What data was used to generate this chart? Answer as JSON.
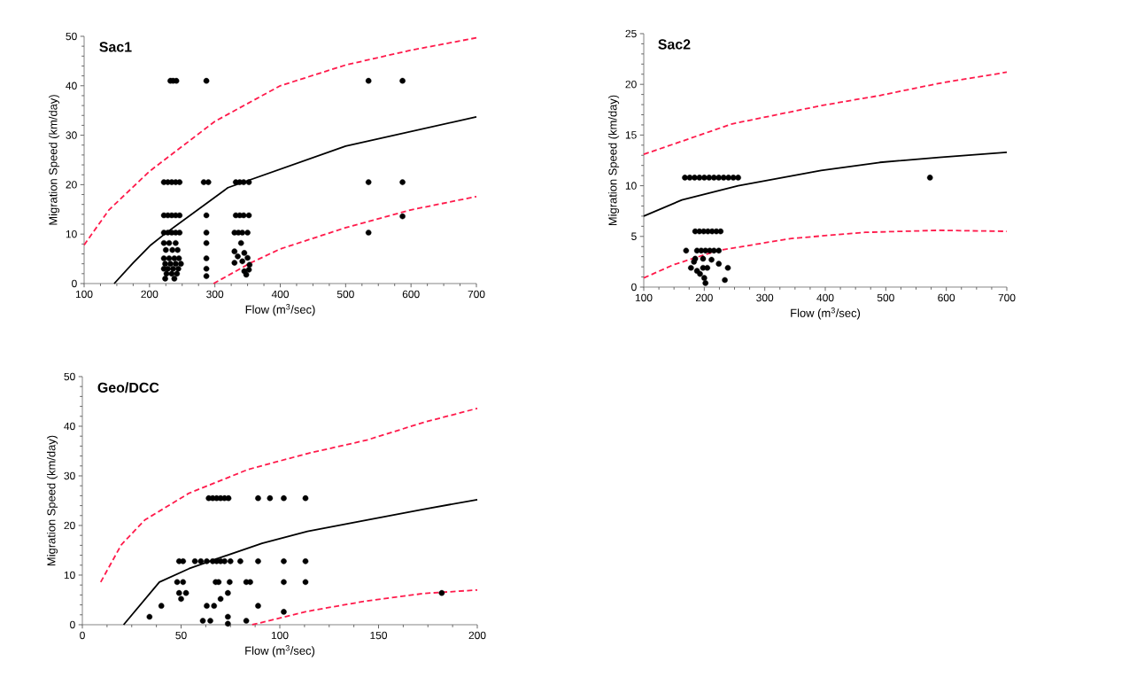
{
  "chart_data": [
    {
      "type": "scatter",
      "title": "Sac1",
      "xlabel": "Flow (m$^{3}$/sec)",
      "ylabel": "Migration Speed (km/day)",
      "xlim": [
        100,
        700
      ],
      "ylim": [
        0,
        50
      ],
      "xticks": [
        100,
        200,
        300,
        400,
        500,
        600,
        700
      ],
      "yticks": [
        0,
        10,
        20,
        30,
        40,
        50
      ],
      "series": [
        {
          "marker": "circle",
          "color": "#000000",
          "x": [
            232,
            236,
            241,
            287,
            535,
            587,
            222,
            228,
            234,
            240,
            246,
            283,
            290,
            332,
            338,
            344,
            352,
            535,
            587,
            222,
            228,
            234,
            240,
            246,
            287,
            332,
            338,
            344,
            352,
            587,
            222,
            228,
            234,
            240,
            246,
            287,
            330,
            336,
            342,
            350,
            535,
            222,
            230,
            240,
            287,
            340,
            225,
            235,
            243,
            330,
            345,
            222,
            230,
            238,
            245,
            287,
            335,
            350,
            224,
            232,
            240,
            248,
            330,
            342,
            353,
            222,
            228,
            236,
            244,
            287,
            345,
            352,
            226,
            234,
            242,
            287,
            348,
            224,
            238
          ],
          "values": [
            41,
            41,
            41,
            41,
            41,
            41,
            20.5,
            20.5,
            20.5,
            20.5,
            20.5,
            20.5,
            20.5,
            20.5,
            20.5,
            20.5,
            20.5,
            20.5,
            20.5,
            13.8,
            13.8,
            13.8,
            13.8,
            13.8,
            13.8,
            13.8,
            13.8,
            13.8,
            13.8,
            13.6,
            10.3,
            10.3,
            10.3,
            10.3,
            10.3,
            10.3,
            10.3,
            10.3,
            10.3,
            10.3,
            10.3,
            8.2,
            8.2,
            8.2,
            8.2,
            8.2,
            6.8,
            6.8,
            6.8,
            6.5,
            6.2,
            5.1,
            5.1,
            5.1,
            5.1,
            5.1,
            5.5,
            5.2,
            4,
            4,
            4,
            4,
            4.2,
            4.5,
            3.8,
            3,
            3,
            3,
            3,
            3,
            2.5,
            2.8,
            2,
            2,
            2,
            1.5,
            1.8,
            1,
            1
          ]
        },
        {
          "type": "line",
          "line_style": "solid",
          "color": "#000000",
          "x": [
            146,
            175,
            202,
            224,
            320,
            500,
            700
          ],
          "values": [
            0,
            4.2,
            7.8,
            10.1,
            19.4,
            27.8,
            33.7
          ]
        },
        {
          "type": "line",
          "line_style": "dashed",
          "color": "#ff1a4b",
          "x": [
            100,
            138,
            200,
            300,
            400,
            500,
            600,
            700
          ],
          "values": [
            7.8,
            14.9,
            22.7,
            32.8,
            40,
            44.2,
            47.2,
            49.7
          ]
        },
        {
          "type": "line",
          "line_style": "dashed",
          "color": "#ff1a4b",
          "x": [
            298,
            355,
            400,
            500,
            600,
            700
          ],
          "values": [
            0,
            4.2,
            7,
            11.3,
            14.9,
            17.6
          ]
        }
      ]
    },
    {
      "type": "scatter",
      "title": "Sac2",
      "xlabel": "Flow (m$^{3}$/sec)",
      "ylabel": "Migration Speed (km/day)",
      "xlim": [
        100,
        700
      ],
      "ylim": [
        0,
        25
      ],
      "xticks": [
        100,
        200,
        300,
        400,
        500,
        600,
        700
      ],
      "yticks": [
        0,
        5,
        10,
        15,
        20,
        25
      ],
      "series": [
        {
          "marker": "circle",
          "color": "#000000",
          "x": [
            168,
            176,
            184,
            192,
            200,
            208,
            216,
            224,
            232,
            240,
            248,
            256,
            573,
            185,
            192,
            199,
            206,
            213,
            220,
            227,
            170,
            188,
            195,
            202,
            209,
            216,
            224,
            185,
            198,
            212,
            224,
            239,
            178,
            188,
            198,
            205,
            193,
            200,
            202,
            234,
            183
          ],
          "values": [
            10.8,
            10.8,
            10.8,
            10.8,
            10.8,
            10.8,
            10.8,
            10.8,
            10.8,
            10.8,
            10.8,
            10.8,
            10.8,
            5.5,
            5.5,
            5.5,
            5.5,
            5.5,
            5.5,
            5.5,
            3.6,
            3.6,
            3.6,
            3.6,
            3.6,
            3.6,
            3.6,
            2.8,
            2.8,
            2.7,
            2.3,
            1.9,
            1.9,
            1.6,
            1.9,
            1.9,
            1.3,
            0.9,
            0.4,
            0.7,
            2.5
          ]
        },
        {
          "type": "line",
          "line_style": "solid",
          "color": "#000000",
          "x": [
            100,
            163,
            256,
            393,
            490,
            588,
            700
          ],
          "values": [
            7,
            8.6,
            10,
            11.5,
            12.3,
            12.8,
            13.3
          ]
        },
        {
          "type": "line",
          "line_style": "dashed",
          "color": "#ff1a4b",
          "x": [
            100,
            149,
            246,
            393,
            490,
            588,
            700
          ],
          "values": [
            13.1,
            14.1,
            16.1,
            17.9,
            18.9,
            20.1,
            21.2
          ]
        },
        {
          "type": "line",
          "line_style": "dashed",
          "color": "#ff1a4b",
          "x": [
            100,
            149,
            222,
            344,
            466,
            588,
            700
          ],
          "values": [
            0.9,
            2.2,
            3.6,
            4.8,
            5.4,
            5.6,
            5.5
          ]
        }
      ]
    },
    {
      "type": "scatter",
      "title": "Geo/DCC",
      "xlabel": "Flow (m$^{3}$/sec)",
      "ylabel": "Migration Speed (km/day)",
      "xlim": [
        0,
        200
      ],
      "ylim": [
        0,
        50
      ],
      "xticks": [
        0,
        50,
        100,
        150,
        200
      ],
      "yticks": [
        0,
        10,
        20,
        30,
        40,
        50
      ],
      "series": [
        {
          "marker": "circle",
          "color": "#000000",
          "x": [
            64,
            66,
            68,
            70,
            72,
            74,
            89,
            95,
            102,
            113,
            49,
            51,
            57,
            60,
            63,
            66,
            68,
            70,
            72,
            75,
            80,
            89,
            102,
            113,
            48,
            51,
            67.5,
            69,
            74.6,
            83,
            85,
            102,
            113,
            49,
            52.5,
            73.7,
            182,
            50,
            70,
            40,
            63,
            66.7,
            89,
            102,
            34,
            73.7,
            61,
            64.8,
            83,
            73.7
          ],
          "values": [
            25.5,
            25.5,
            25.5,
            25.5,
            25.5,
            25.5,
            25.5,
            25.5,
            25.5,
            25.5,
            12.8,
            12.8,
            12.8,
            12.8,
            12.8,
            12.8,
            12.8,
            12.8,
            12.8,
            12.8,
            12.8,
            12.8,
            12.8,
            12.8,
            8.6,
            8.6,
            8.6,
            8.6,
            8.6,
            8.6,
            8.6,
            8.6,
            8.6,
            6.4,
            6.4,
            6.4,
            6.4,
            5.2,
            5.2,
            3.8,
            3.8,
            3.8,
            3.8,
            2.6,
            1.6,
            1.6,
            0.8,
            0.8,
            0.8,
            0.2
          ]
        },
        {
          "type": "line",
          "line_style": "solid",
          "color": "#000000",
          "x": [
            20.9,
            39,
            54,
            69,
            91,
            114,
            144,
            173,
            200
          ],
          "values": [
            0,
            8.6,
            11.3,
            13.4,
            16.4,
            18.8,
            21.1,
            23.3,
            25.2
          ]
        },
        {
          "type": "line",
          "line_style": "dashed",
          "color": "#ff1a4b",
          "x": [
            9.3,
            19.7,
            31.6,
            54,
            84,
            114,
            144,
            173,
            200
          ],
          "values": [
            8.6,
            16.1,
            21.1,
            26.5,
            31.3,
            34.5,
            37.2,
            40.8,
            43.6
          ]
        },
        {
          "type": "line",
          "line_style": "dashed",
          "color": "#ff1a4b",
          "x": [
            86,
            114,
            144,
            173,
            200
          ],
          "values": [
            0,
            2.7,
            4.8,
            6.3,
            7
          ]
        }
      ]
    }
  ]
}
